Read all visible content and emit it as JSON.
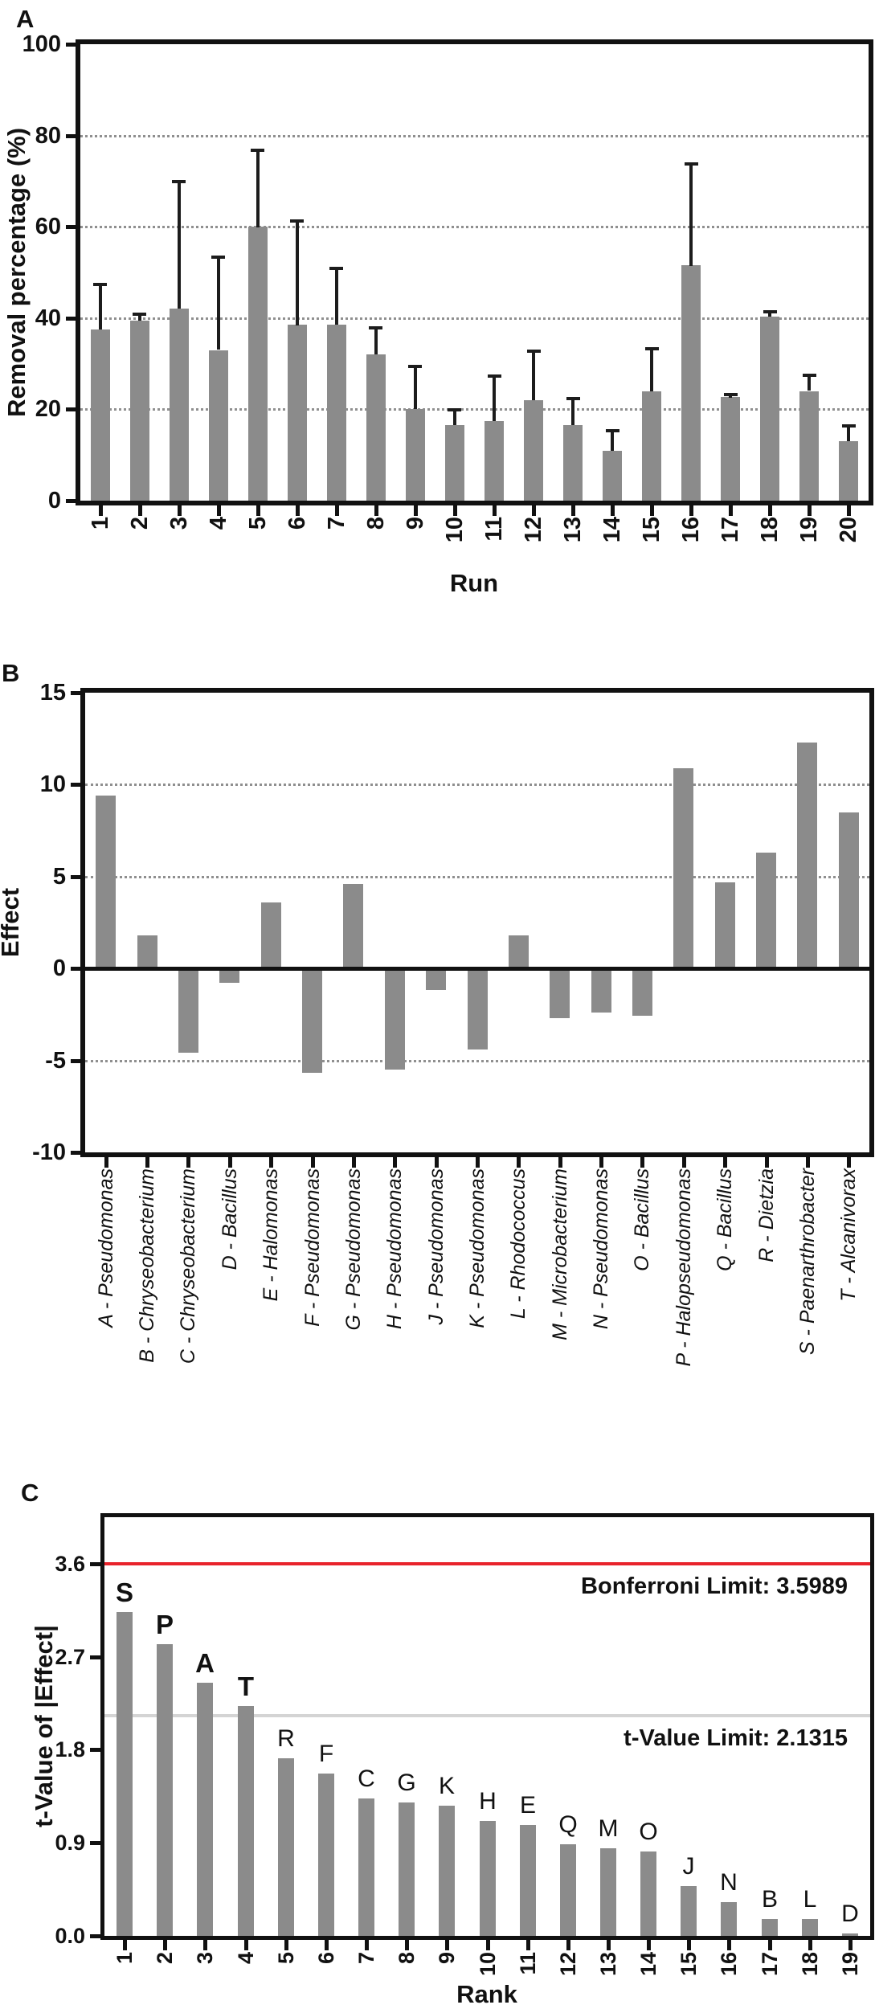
{
  "panels": {
    "a": {
      "letter": "A"
    },
    "b": {
      "letter": "B"
    },
    "c": {
      "letter": "C"
    }
  },
  "chart_data": [
    {
      "panel": "A",
      "type": "bar",
      "title": "",
      "xlabel": "Run",
      "ylabel": "Removal percentage (%)",
      "categories": [
        "1",
        "2",
        "3",
        "4",
        "5",
        "6",
        "7",
        "8",
        "9",
        "10",
        "11",
        "12",
        "13",
        "14",
        "15",
        "16",
        "17",
        "18",
        "19",
        "20"
      ],
      "values": [
        37.5,
        39.5,
        42,
        33,
        60,
        38.5,
        38.5,
        32,
        20,
        16.5,
        17.5,
        22,
        16.5,
        11,
        24,
        51.5,
        22.7,
        40.3,
        24,
        13
      ],
      "errors_plus": [
        10,
        1.5,
        28,
        20.5,
        17,
        23,
        12.5,
        6,
        9.5,
        3.5,
        10,
        11,
        6,
        4.5,
        9.5,
        22.5,
        0.8,
        1.2,
        3.6,
        3.5
      ],
      "ylim": [
        0,
        100
      ],
      "yticks": [
        {
          "v": 0,
          "label": "0"
        },
        {
          "v": 20,
          "label": "20"
        },
        {
          "v": 40,
          "label": "40"
        },
        {
          "v": 60,
          "label": "60"
        },
        {
          "v": 80,
          "label": "80"
        },
        {
          "v": 100,
          "label": "100"
        }
      ],
      "grid_values": [
        20,
        40,
        60,
        80
      ],
      "grid": "dotted horizontal",
      "legend": "none",
      "bar_color": "#8b8b8b"
    },
    {
      "panel": "B",
      "type": "bar",
      "title": "",
      "xlabel": "",
      "ylabel": "Effect",
      "categories": [
        "A - Pseudomonas",
        "B - Chryseobacterium",
        "C - Chryseobacterium",
        "D - Bacillus",
        "E - Halomonas",
        "F - Pseudomonas",
        "G - Pseudomonas",
        "H - Pseudomonas",
        "J - Pseudomonas",
        "K - Pseudomonas",
        "L - Rhodococcus",
        "M - Microbacterium",
        "N - Pseudomonas",
        "O - Bacillus",
        "P - Halopseudomonas",
        "Q - Bacillus",
        "R - Dietzia",
        "S - Paenarthrobacter",
        "T - Alcanivorax"
      ],
      "values": [
        9.4,
        1.8,
        -4.6,
        -0.8,
        3.6,
        -5.7,
        4.6,
        -5.5,
        -1.2,
        -4.4,
        1.8,
        -2.7,
        -2.4,
        -2.6,
        10.9,
        4.7,
        6.3,
        12.3,
        8.5
      ],
      "ylim": [
        -10,
        15
      ],
      "yticks": [
        {
          "v": -10,
          "label": "-10"
        },
        {
          "v": -5,
          "label": "-5"
        },
        {
          "v": 0,
          "label": "0"
        },
        {
          "v": 5,
          "label": "5"
        },
        {
          "v": 10,
          "label": "10"
        },
        {
          "v": 15,
          "label": "15"
        }
      ],
      "grid_values": [
        10,
        5,
        -5
      ],
      "grid": "dotted horizontal",
      "zero_line": true,
      "legend": "none",
      "bar_color": "#8b8b8b"
    },
    {
      "panel": "C",
      "type": "bar",
      "title": "",
      "xlabel": "Rank",
      "ylabel": "t-Value of |Effect|",
      "categories": [
        "1",
        "2",
        "3",
        "4",
        "5",
        "6",
        "7",
        "8",
        "9",
        "10",
        "11",
        "12",
        "13",
        "14",
        "15",
        "16",
        "17",
        "18",
        "19"
      ],
      "values": [
        3.13,
        2.82,
        2.45,
        2.22,
        1.72,
        1.57,
        1.33,
        1.29,
        1.26,
        1.11,
        1.07,
        0.89,
        0.85,
        0.82,
        0.48,
        0.33,
        0.16,
        0.16,
        0.02
      ],
      "bar_letters": [
        "S",
        "P",
        "A",
        "T",
        "R",
        "F",
        "C",
        "G",
        "K",
        "H",
        "E",
        "Q",
        "M",
        "O",
        "J",
        "N",
        "B",
        "L",
        "D"
      ],
      "bold_letters": [
        "S",
        "P",
        "A",
        "T"
      ],
      "ylim": [
        0,
        4.05
      ],
      "yticks": [
        {
          "v": 0.0,
          "label": "0.0"
        },
        {
          "v": 0.9,
          "label": "0.9"
        },
        {
          "v": 1.8,
          "label": "1.8"
        },
        {
          "v": 2.7,
          "label": "2.7"
        },
        {
          "v": 3.6,
          "label": "3.6"
        }
      ],
      "grid_values": [],
      "grid": "off",
      "ref_lines": [
        {
          "value": 3.5989,
          "label": "Bonferroni Limit: 3.5989",
          "color": "#e8232b"
        },
        {
          "value": 2.1315,
          "label": "t-Value Limit: 2.1315",
          "color": "#d4d4d4"
        }
      ],
      "legend": "none",
      "bar_color": "#8b8b8b"
    }
  ]
}
